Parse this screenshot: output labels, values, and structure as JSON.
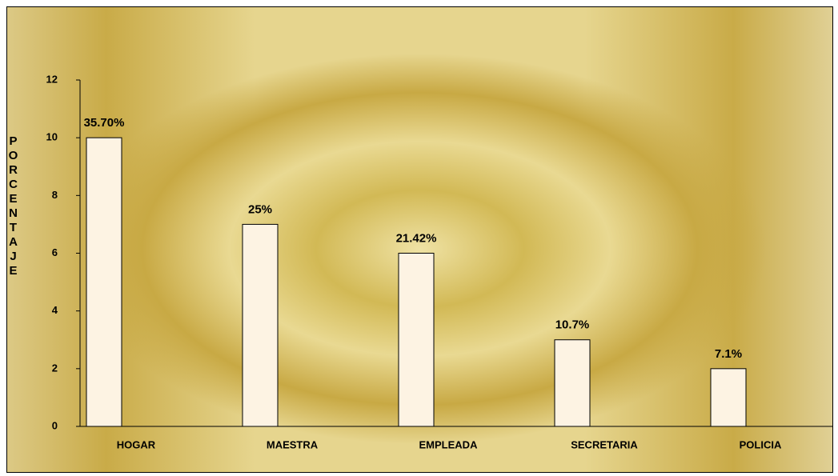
{
  "chart_data": {
    "type": "bar",
    "y_label": "PORCENTAJE",
    "categories": [
      "HOGAR",
      "MAESTRA",
      "EMPLEADA",
      "SECRETARIA",
      "POLICIA"
    ],
    "values": [
      10,
      7,
      6,
      3,
      2
    ],
    "annotations": [
      "35.70%",
      "25%",
      "21.42%",
      "10.7%",
      "7.1%"
    ],
    "color": "#fdf3e3",
    "ylim": [
      0,
      12
    ],
    "yticks": [
      0,
      2,
      4,
      6,
      8,
      10,
      12
    ],
    "grid": false
  }
}
